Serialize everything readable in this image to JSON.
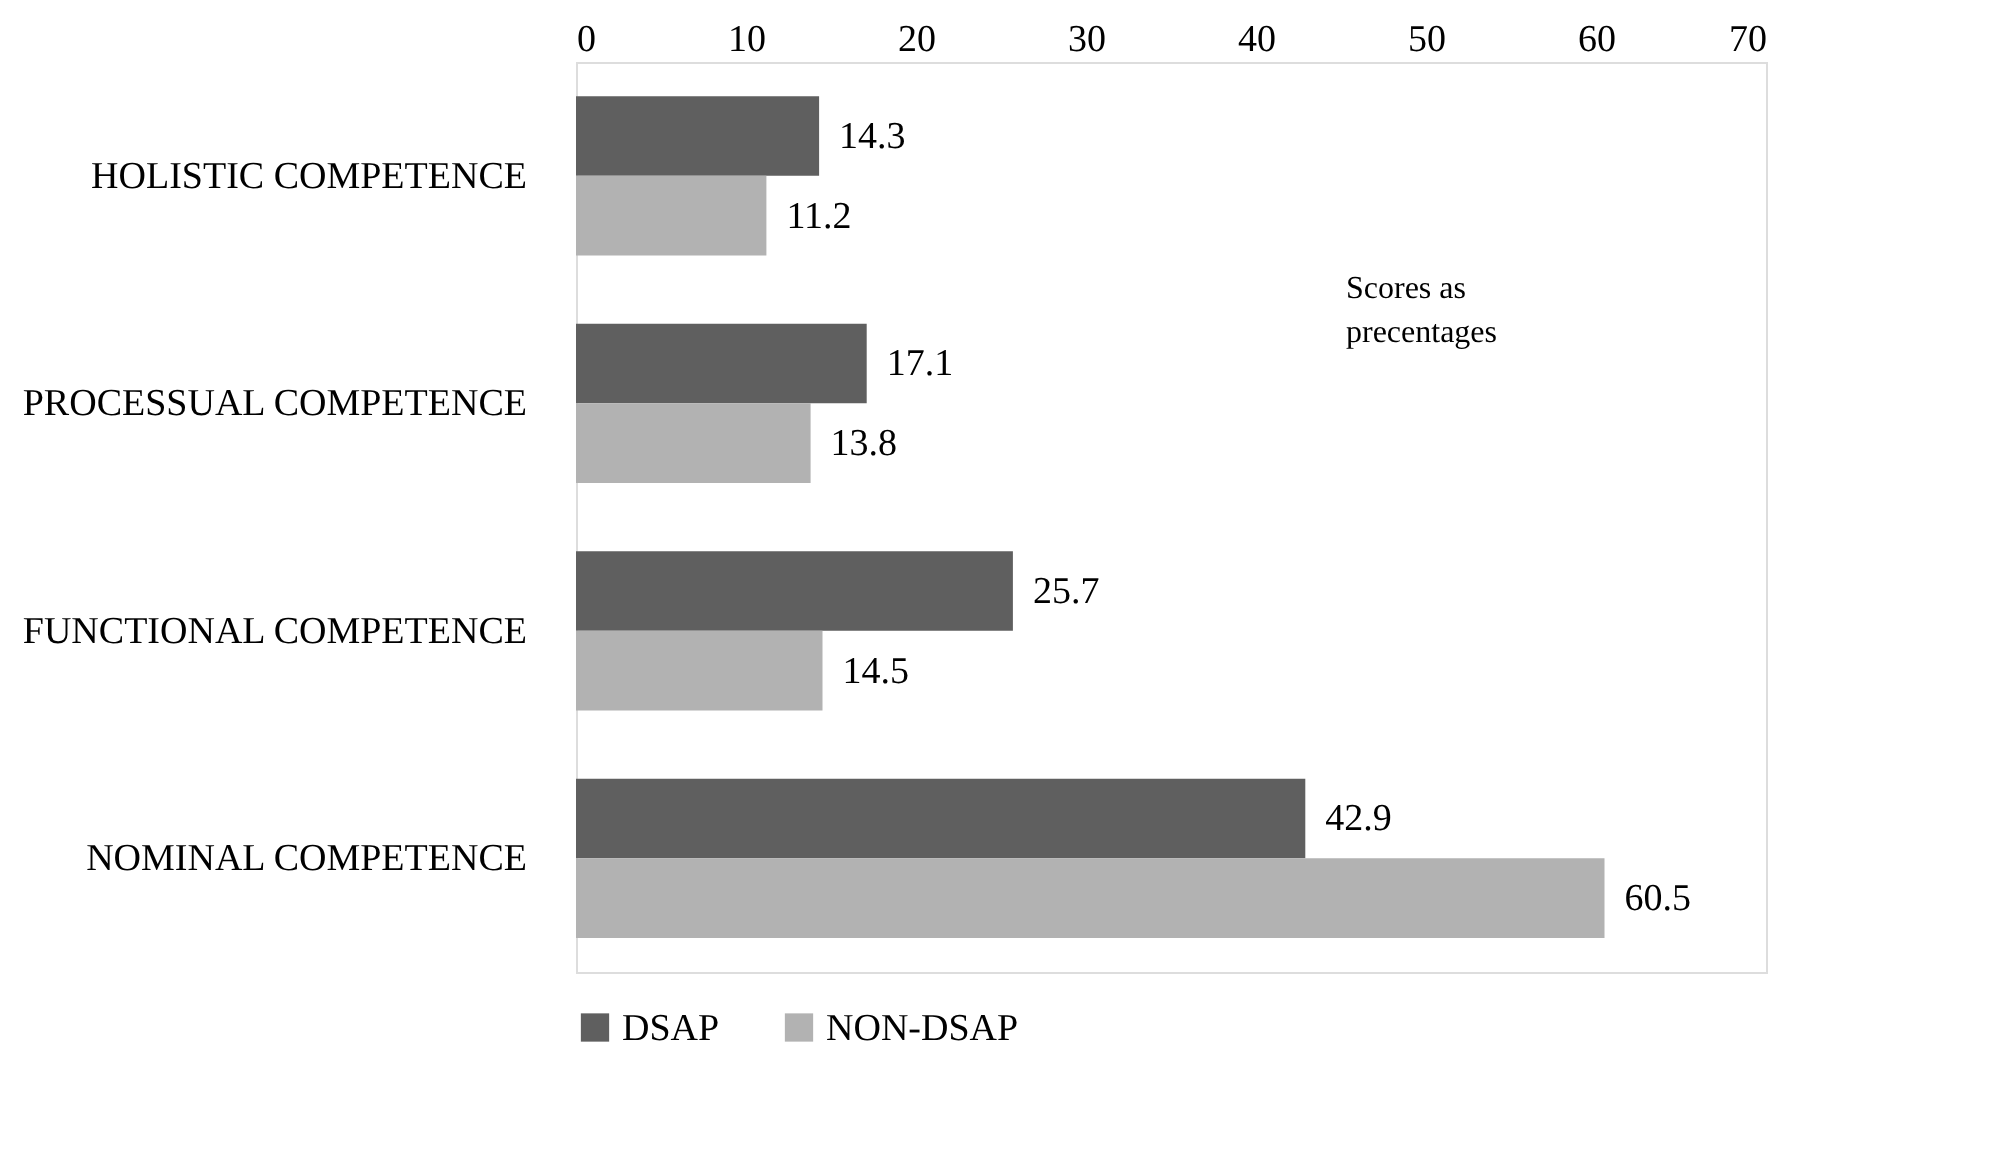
{
  "chart_data": {
    "type": "bar",
    "orientation": "horizontal",
    "categories": [
      "HOLISTIC COMPETENCE",
      "PROCESSUAL COMPETENCE",
      "FUNCTIONAL COMPETENCE",
      "NOMINAL COMPETENCE"
    ],
    "series": [
      {
        "name": "DSAP",
        "color": "#5f5f5f",
        "values": [
          14.3,
          17.1,
          25.7,
          42.9
        ]
      },
      {
        "name": "NON-DSAP",
        "color": "#b2b2b2",
        "values": [
          11.2,
          13.8,
          14.5,
          60.5
        ]
      }
    ],
    "xlim": [
      0,
      70
    ],
    "xticks": [
      0,
      10,
      20,
      30,
      40,
      50,
      60,
      70
    ],
    "data_labels": true,
    "grid": false,
    "legend": "bottom",
    "annotations": [
      "Scores as precentages"
    ]
  }
}
